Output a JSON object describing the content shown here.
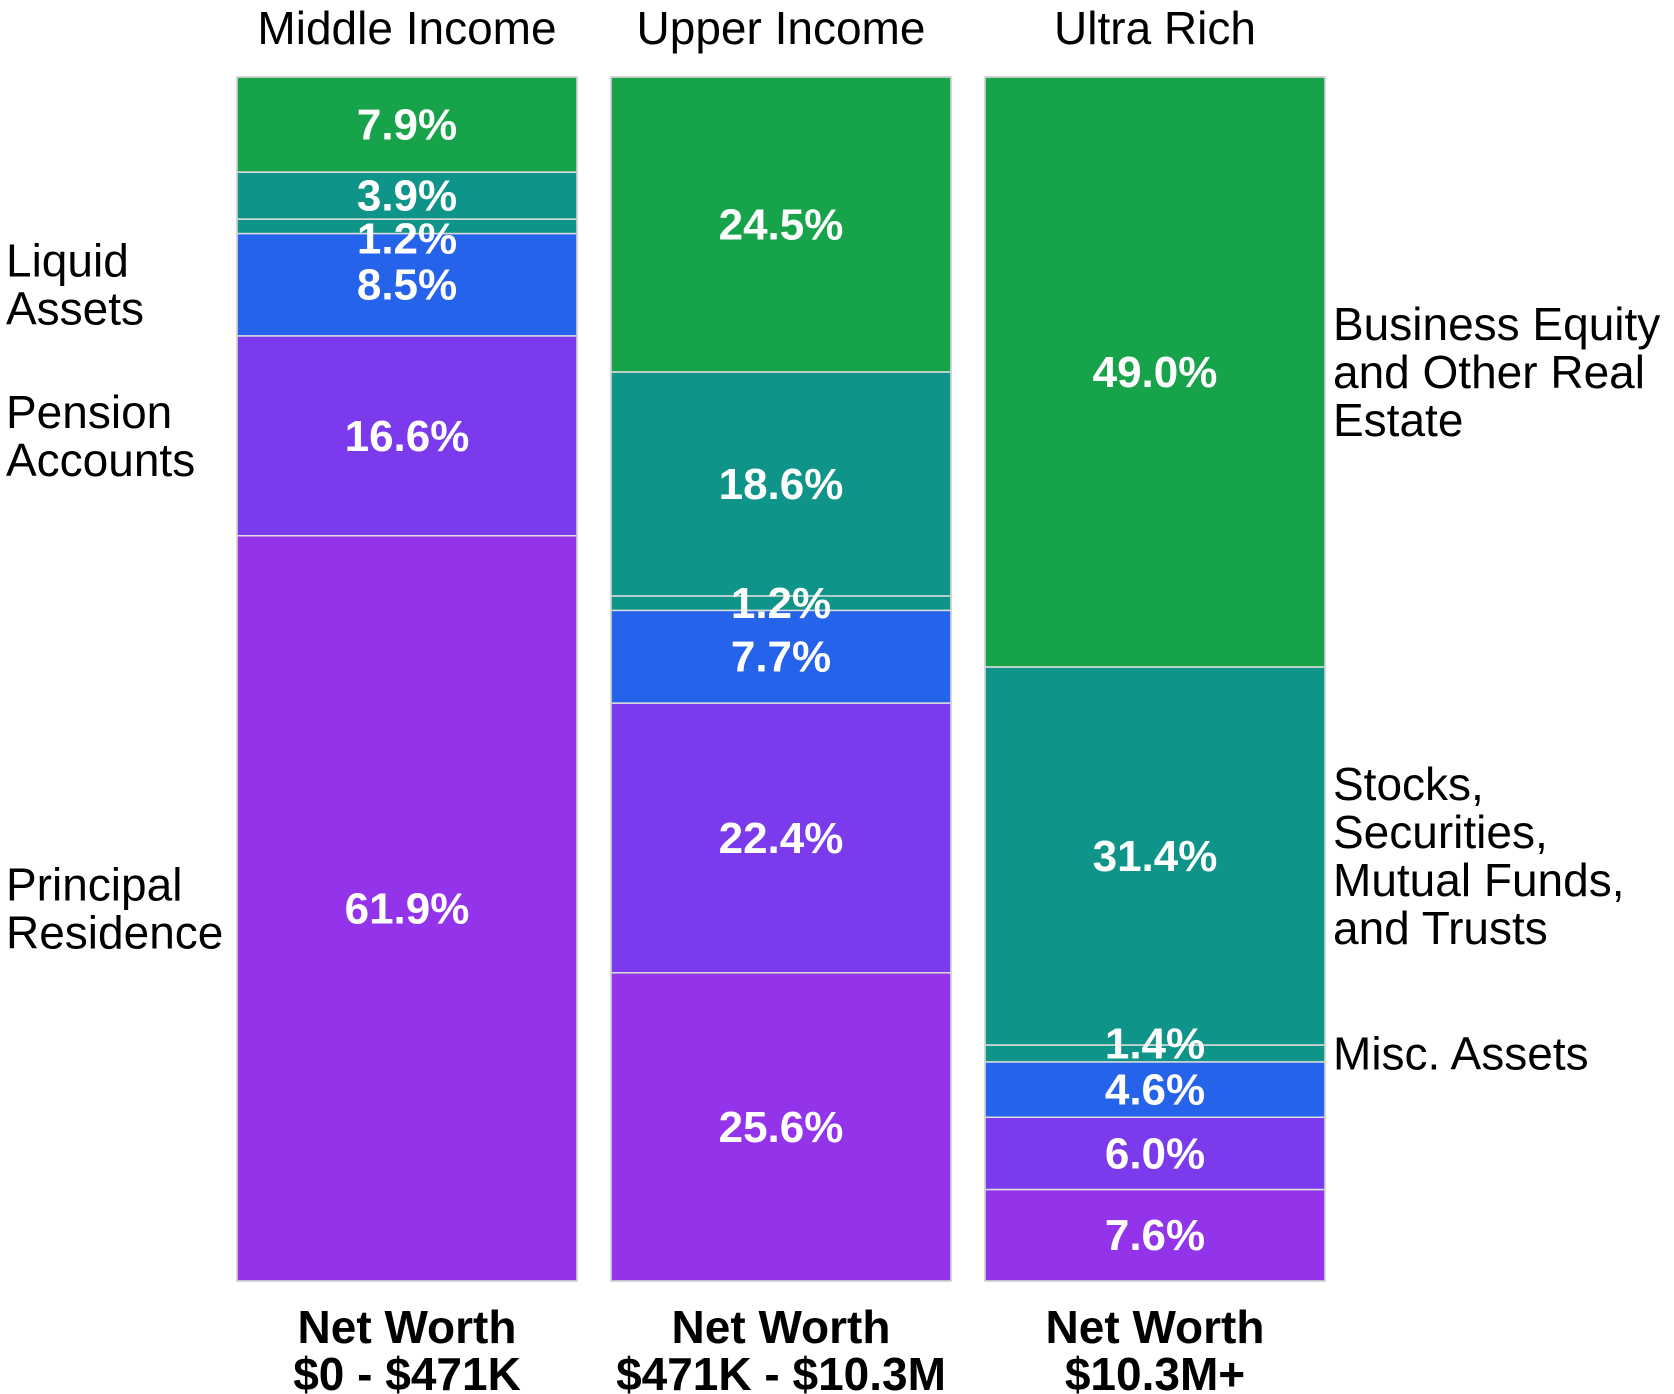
{
  "chart_data": {
    "type": "bar",
    "stacked": true,
    "normalized_percent": true,
    "categories": [
      "Middle Income",
      "Upper Income",
      "Ultra Rich"
    ],
    "net_worth": [
      {
        "line1": "Net Worth",
        "line2": "$0 - $471K"
      },
      {
        "line1": "Net Worth",
        "line2": "$471K - $10.3M"
      },
      {
        "line1": "Net Worth",
        "line2": "$10.3M+"
      }
    ],
    "series": [
      {
        "name": "Principal Residence",
        "color": "#9333ea",
        "values": [
          61.9,
          25.6,
          7.6
        ],
        "labels": [
          "61.9%",
          "25.6%",
          "7.6%"
        ]
      },
      {
        "name": "Pension Accounts",
        "color": "#7c3aed",
        "values": [
          16.6,
          22.4,
          6.0
        ],
        "labels": [
          "16.6%",
          "22.4%",
          "6.0%"
        ]
      },
      {
        "name": "Liquid Assets",
        "color": "#2563eb",
        "values": [
          8.5,
          7.7,
          4.6
        ],
        "labels": [
          "8.5%",
          "7.7%",
          "4.6%"
        ]
      },
      {
        "name": "Misc. Assets",
        "color": "#0e9488",
        "values": [
          1.2,
          1.2,
          1.4
        ],
        "labels": [
          "1.2%",
          "1.2%",
          "1.4%"
        ]
      },
      {
        "name": "Stocks, Securities, Mutual Funds, and Trusts",
        "color": "#0e9488",
        "values": [
          3.9,
          18.6,
          31.4
        ],
        "labels": [
          "3.9%",
          "18.6%",
          "31.4%"
        ]
      },
      {
        "name": "Business Equity and Other Real Estate",
        "color": "#17a34a",
        "values": [
          7.9,
          24.5,
          49.0
        ],
        "labels": [
          "7.9%",
          "24.5%",
          "49.0%"
        ]
      }
    ],
    "left_labels": [
      {
        "series": "Liquid Assets",
        "lines": [
          "Liquid",
          "Assets"
        ]
      },
      {
        "series": "Pension Accounts",
        "lines": [
          "Pension",
          "Accounts"
        ]
      },
      {
        "series": "Principal Residence",
        "lines": [
          "Principal",
          "Residence"
        ]
      }
    ],
    "right_labels": [
      {
        "series": "Business Equity and Other Real Estate",
        "lines": [
          "Business Equity",
          "and Other Real",
          "Estate"
        ]
      },
      {
        "series": "Stocks, Securities, Mutual Funds, and Trusts",
        "lines": [
          "Stocks,",
          "Securities,",
          "Mutual Funds,",
          "and Trusts"
        ]
      },
      {
        "series": "Misc. Assets",
        "lines": [
          "Misc. Assets"
        ]
      }
    ],
    "ylim": [
      0,
      100
    ]
  }
}
